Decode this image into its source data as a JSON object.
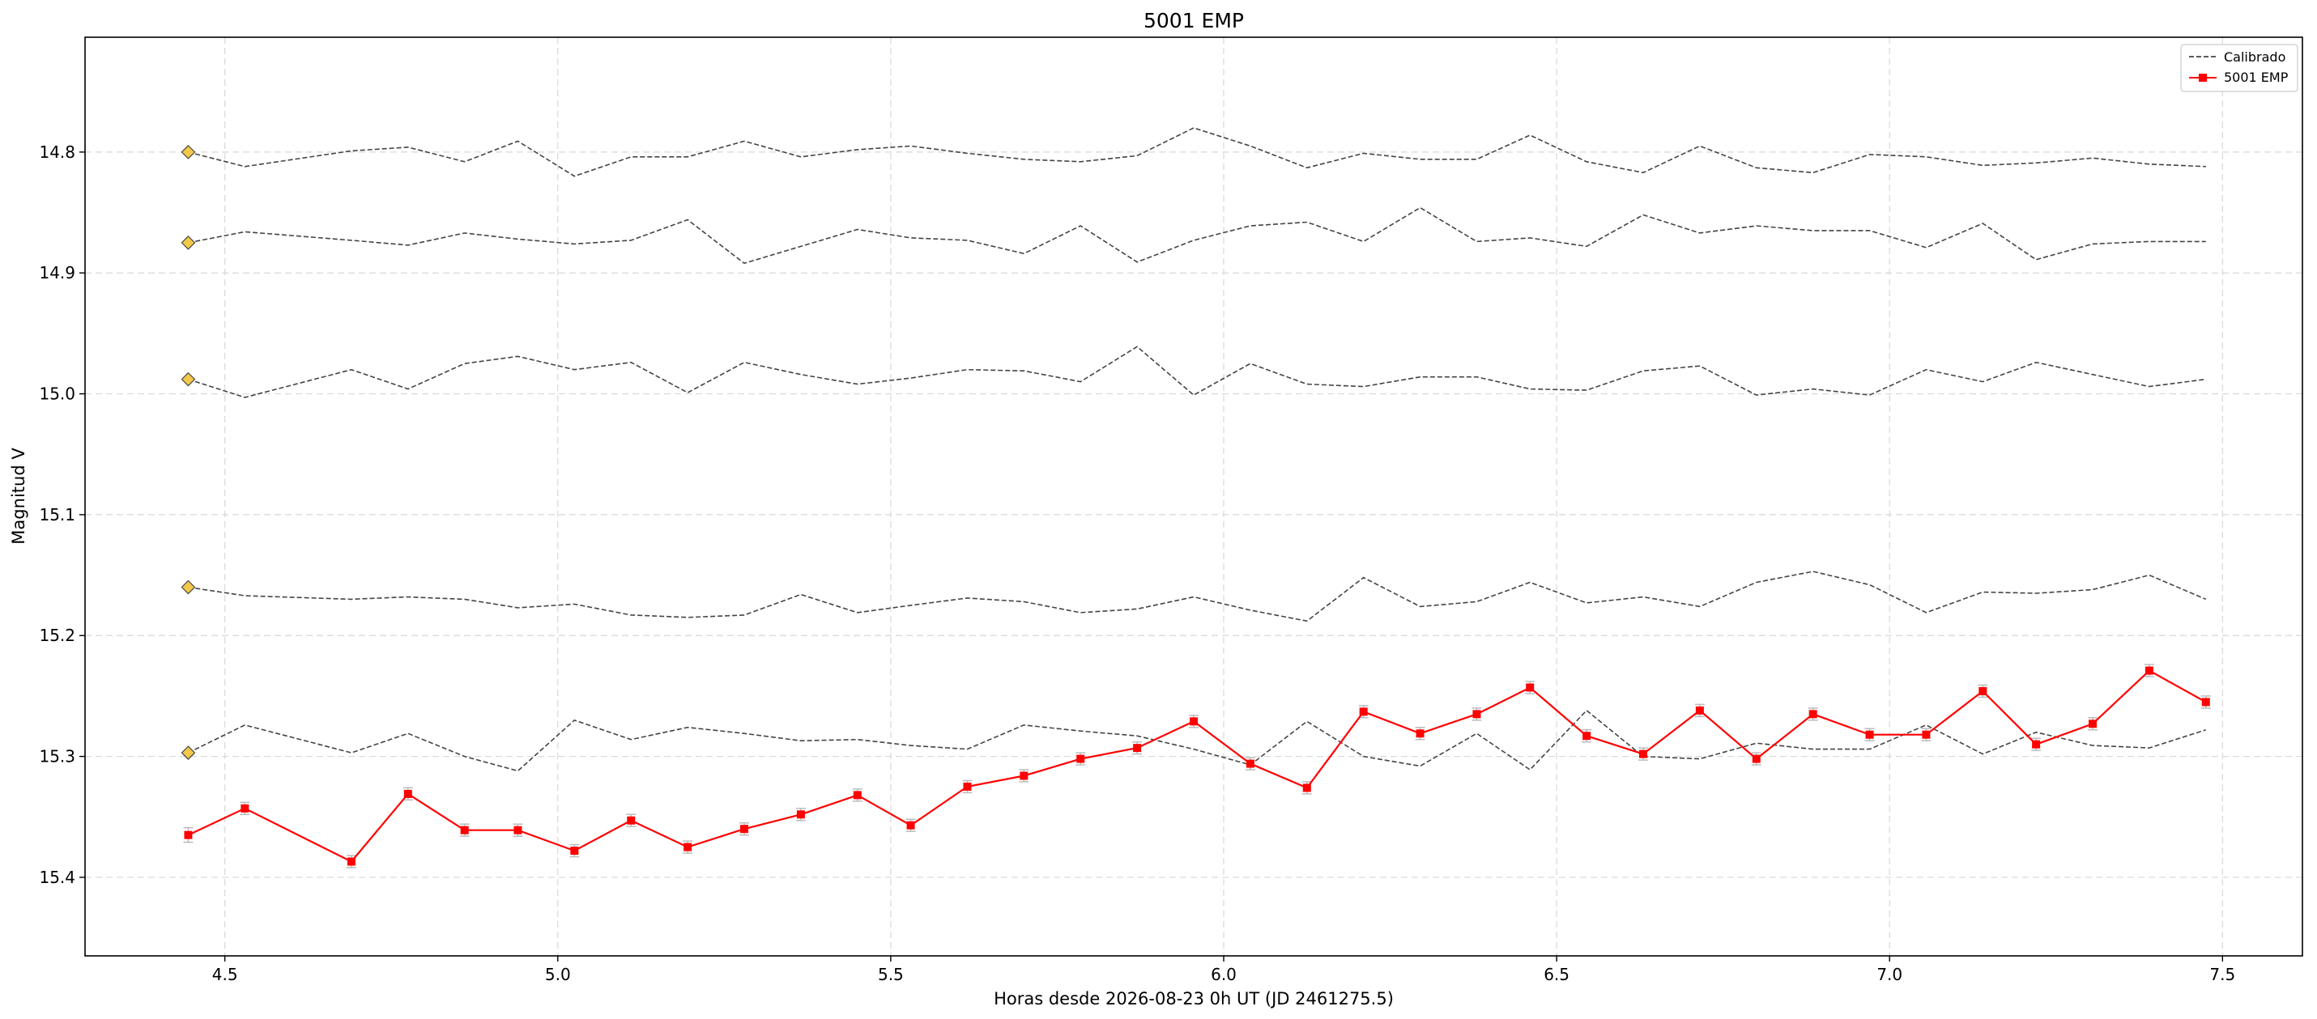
{
  "chart_data": {
    "type": "line",
    "title": "5001 EMP",
    "xlabel": "Horas desde 2026-08-23 0h UT (JD 2461275.5)",
    "ylabel": "Magnitud V",
    "xlim": [
      4.29,
      7.62
    ],
    "ylim": [
      15.465,
      14.705
    ],
    "y_inverted": true,
    "grid": true,
    "legend_position": "top-right",
    "x_ticks": [
      4.5,
      5.0,
      5.5,
      6.0,
      6.5,
      7.0,
      7.5
    ],
    "x_tick_labels": [
      "4.5",
      "5.0",
      "5.5",
      "6.0",
      "6.5",
      "7.0",
      "7.5"
    ],
    "y_ticks": [
      14.8,
      14.9,
      15.0,
      15.1,
      15.2,
      15.3,
      15.4
    ],
    "y_tick_labels": [
      "14.8",
      "14.9",
      "15.0",
      "15.1",
      "15.2",
      "15.3",
      "15.4"
    ],
    "legend": [
      {
        "label": "Calibrado",
        "style": "dashed",
        "color": "#444444"
      },
      {
        "label": "5001 EMP",
        "style": "solid-square",
        "color": "#ff0000"
      }
    ],
    "x": [
      4.445,
      4.53,
      4.69,
      4.775,
      4.86,
      4.94,
      5.025,
      5.11,
      5.195,
      5.28,
      5.365,
      5.45,
      5.53,
      5.615,
      5.7,
      5.785,
      5.87,
      5.955,
      6.04,
      6.125,
      6.21,
      6.295,
      6.38,
      6.46,
      6.545,
      6.63,
      6.715,
      6.8,
      6.885,
      6.97,
      7.055,
      7.14,
      7.22,
      7.305,
      7.39,
      7.475
    ],
    "series": [
      {
        "name": "5001 EMP",
        "color": "#ff0000",
        "marker": "square",
        "values": [
          15.365,
          15.343,
          15.387,
          15.331,
          15.361,
          15.361,
          15.378,
          15.353,
          15.375,
          15.36,
          15.348,
          15.332,
          15.357,
          15.325,
          15.316,
          15.302,
          15.293,
          15.271,
          15.306,
          15.326,
          15.263,
          15.281,
          15.265,
          15.243,
          15.283,
          15.298,
          15.262,
          15.302,
          15.265,
          15.282,
          15.282,
          15.246,
          15.29,
          15.273,
          15.229,
          15.255
        ],
        "errors": [
          0.006,
          0.005,
          0.005,
          0.005,
          0.005,
          0.005,
          0.005,
          0.005,
          0.005,
          0.005,
          0.005,
          0.005,
          0.005,
          0.005,
          0.005,
          0.005,
          0.005,
          0.005,
          0.005,
          0.005,
          0.005,
          0.005,
          0.005,
          0.005,
          0.005,
          0.005,
          0.005,
          0.005,
          0.005,
          0.005,
          0.005,
          0.005,
          0.005,
          0.005,
          0.005,
          0.005
        ]
      },
      {
        "name": "Calibrado",
        "color": "#444444",
        "dashed": true,
        "start_marker": "diamond",
        "values": [
          14.8,
          14.812,
          14.799,
          14.796,
          14.808,
          14.791,
          14.82,
          14.804,
          14.804,
          14.791,
          14.804,
          14.798,
          14.795,
          14.801,
          14.806,
          14.808,
          14.803,
          14.78,
          14.795,
          14.813,
          14.801,
          14.806,
          14.806,
          14.786,
          14.808,
          14.817,
          14.795,
          14.813,
          14.817,
          14.802,
          14.804,
          14.811,
          14.809,
          14.805,
          14.81,
          14.812
        ]
      },
      {
        "name": "Calibrado",
        "color": "#444444",
        "dashed": true,
        "start_marker": "diamond",
        "values": [
          14.875,
          14.866,
          14.873,
          14.877,
          14.867,
          14.872,
          14.876,
          14.873,
          14.856,
          14.892,
          14.878,
          14.864,
          14.871,
          14.873,
          14.884,
          14.861,
          14.891,
          14.873,
          14.861,
          14.858,
          14.874,
          14.846,
          14.874,
          14.871,
          14.878,
          14.852,
          14.867,
          14.861,
          14.865,
          14.865,
          14.879,
          14.859,
          14.889,
          14.876,
          14.874,
          14.874
        ]
      },
      {
        "name": "Calibrado",
        "color": "#444444",
        "dashed": true,
        "start_marker": "diamond",
        "values": [
          14.988,
          15.003,
          14.98,
          14.996,
          14.975,
          14.969,
          14.98,
          14.974,
          14.999,
          14.974,
          14.984,
          14.992,
          14.987,
          14.98,
          14.981,
          14.99,
          14.961,
          15.001,
          14.975,
          14.992,
          14.994,
          14.986,
          14.986,
          14.996,
          14.997,
          14.981,
          14.977,
          15.001,
          14.996,
          15.001,
          14.98,
          14.99,
          14.974,
          14.984,
          14.994,
          14.988
        ]
      },
      {
        "name": "Calibrado",
        "color": "#444444",
        "dashed": true,
        "start_marker": "diamond",
        "values": [
          15.16,
          15.167,
          15.17,
          15.168,
          15.17,
          15.177,
          15.174,
          15.183,
          15.185,
          15.183,
          15.166,
          15.181,
          15.175,
          15.169,
          15.172,
          15.181,
          15.178,
          15.168,
          15.179,
          15.188,
          15.152,
          15.176,
          15.172,
          15.156,
          15.173,
          15.168,
          15.176,
          15.156,
          15.147,
          15.158,
          15.181,
          15.164,
          15.165,
          15.162,
          15.15,
          15.17
        ]
      },
      {
        "name": "Calibrado",
        "color": "#444444",
        "dashed": true,
        "start_marker": "diamond",
        "values": [
          15.297,
          15.274,
          15.297,
          15.281,
          15.3,
          15.312,
          15.27,
          15.286,
          15.276,
          15.281,
          15.287,
          15.286,
          15.291,
          15.294,
          15.274,
          15.279,
          15.283,
          15.294,
          15.307,
          15.271,
          15.3,
          15.308,
          15.281,
          15.311,
          15.262,
          15.3,
          15.302,
          15.289,
          15.294,
          15.294,
          15.274,
          15.298,
          15.28,
          15.291,
          15.293,
          15.278
        ]
      }
    ]
  }
}
